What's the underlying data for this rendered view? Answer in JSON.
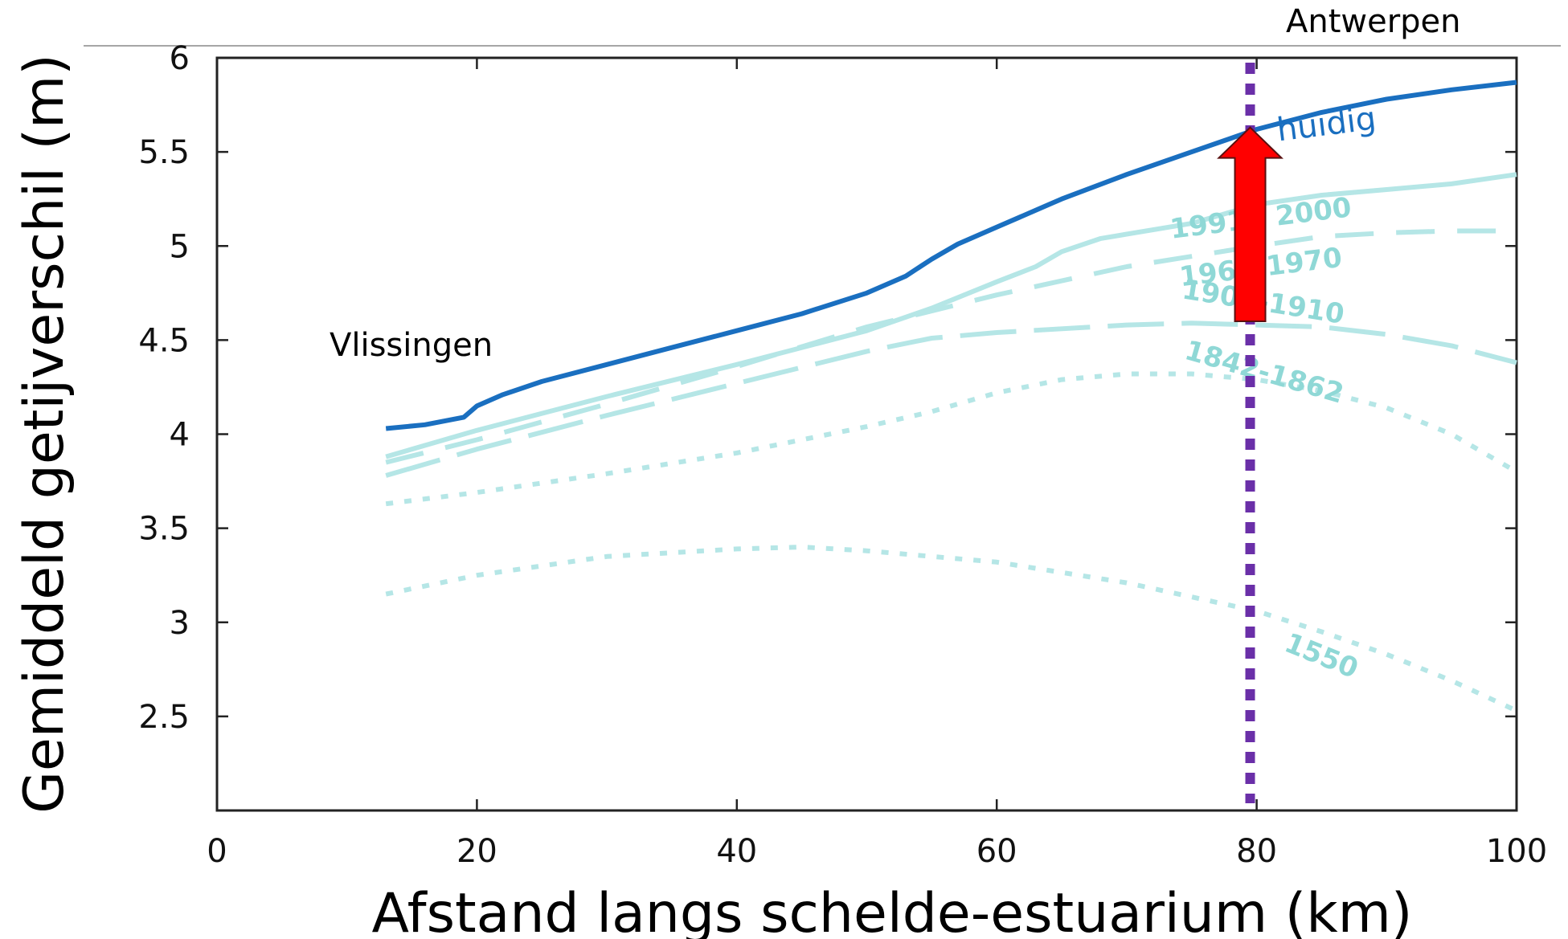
{
  "chart_data": {
    "type": "line",
    "title": "",
    "xlabel": "Afstand langs schelde-estuarium (km)",
    "ylabel": "Gemiddeld getijverschil (m)",
    "xlim": [
      0,
      100
    ],
    "ylim": [
      2,
      6
    ],
    "xticks": [
      "0",
      "20",
      "40",
      "60",
      "80",
      "100"
    ],
    "yticks": [
      "2.5",
      "3",
      "3.5",
      "4",
      "4.5",
      "5",
      "5.5",
      "6"
    ],
    "grid": false,
    "colors": {
      "current": "#1a6fc0",
      "historic": "#b5e6e6",
      "historic_label": "#8fd8d6",
      "marker_line": "#6a2fa8",
      "arrow": "#ff0000"
    },
    "series": [
      {
        "name": "huidig",
        "style": "solid",
        "x": [
          13,
          16,
          19,
          20,
          22,
          25,
          30,
          35,
          40,
          45,
          50,
          53,
          55,
          57,
          60,
          65,
          70,
          75,
          80,
          85,
          90,
          95,
          100
        ],
        "y": [
          4.03,
          4.05,
          4.09,
          4.15,
          4.21,
          4.28,
          4.37,
          4.46,
          4.55,
          4.64,
          4.75,
          4.84,
          4.93,
          5.01,
          5.1,
          5.25,
          5.38,
          5.5,
          5.62,
          5.71,
          5.78,
          5.83,
          5.87
        ]
      },
      {
        "name": "1991 - 2000",
        "style": "solid",
        "x": [
          13,
          20,
          30,
          40,
          50,
          55,
          60,
          63,
          65,
          68,
          75,
          80,
          85,
          90,
          95,
          100
        ],
        "y": [
          3.88,
          4.02,
          4.2,
          4.37,
          4.55,
          4.67,
          4.81,
          4.89,
          4.97,
          5.04,
          5.12,
          5.22,
          5.27,
          5.3,
          5.33,
          5.38
        ]
      },
      {
        "name": "1961-1970",
        "style": "dashed",
        "x": [
          13,
          20,
          30,
          40,
          50,
          60,
          70,
          80,
          85,
          90,
          95,
          100
        ],
        "y": [
          3.85,
          3.97,
          4.16,
          4.36,
          4.57,
          4.74,
          4.89,
          5.0,
          5.05,
          5.07,
          5.08,
          5.08
        ]
      },
      {
        "name": "1901-1910",
        "style": "longdash",
        "x": [
          13,
          20,
          30,
          40,
          50,
          55,
          60,
          70,
          75,
          80,
          85,
          90,
          95,
          100
        ],
        "y": [
          3.78,
          3.92,
          4.1,
          4.27,
          4.44,
          4.51,
          4.54,
          4.58,
          4.59,
          4.58,
          4.57,
          4.53,
          4.47,
          4.38
        ]
      },
      {
        "name": "1842-1862",
        "style": "dotted",
        "x": [
          13,
          20,
          30,
          40,
          50,
          55,
          60,
          65,
          70,
          75,
          80,
          85,
          90,
          95,
          100
        ],
        "y": [
          3.63,
          3.69,
          3.79,
          3.9,
          4.04,
          4.12,
          4.22,
          4.29,
          4.32,
          4.32,
          4.29,
          4.23,
          4.14,
          4.0,
          3.8
        ]
      },
      {
        "name": "1550",
        "style": "dotted",
        "x": [
          13,
          20,
          30,
          40,
          45,
          50,
          60,
          70,
          80,
          85,
          90,
          95,
          100
        ],
        "y": [
          3.15,
          3.25,
          3.35,
          3.39,
          3.4,
          3.38,
          3.32,
          3.21,
          3.06,
          2.95,
          2.83,
          2.69,
          2.53
        ]
      }
    ],
    "annotations": {
      "left_station": "Vlissingen",
      "right_station": "Antwerpen",
      "marker_x": 79.5,
      "arrow": {
        "x": 79.5,
        "y_start": 4.6,
        "y_end": 5.63
      }
    }
  }
}
